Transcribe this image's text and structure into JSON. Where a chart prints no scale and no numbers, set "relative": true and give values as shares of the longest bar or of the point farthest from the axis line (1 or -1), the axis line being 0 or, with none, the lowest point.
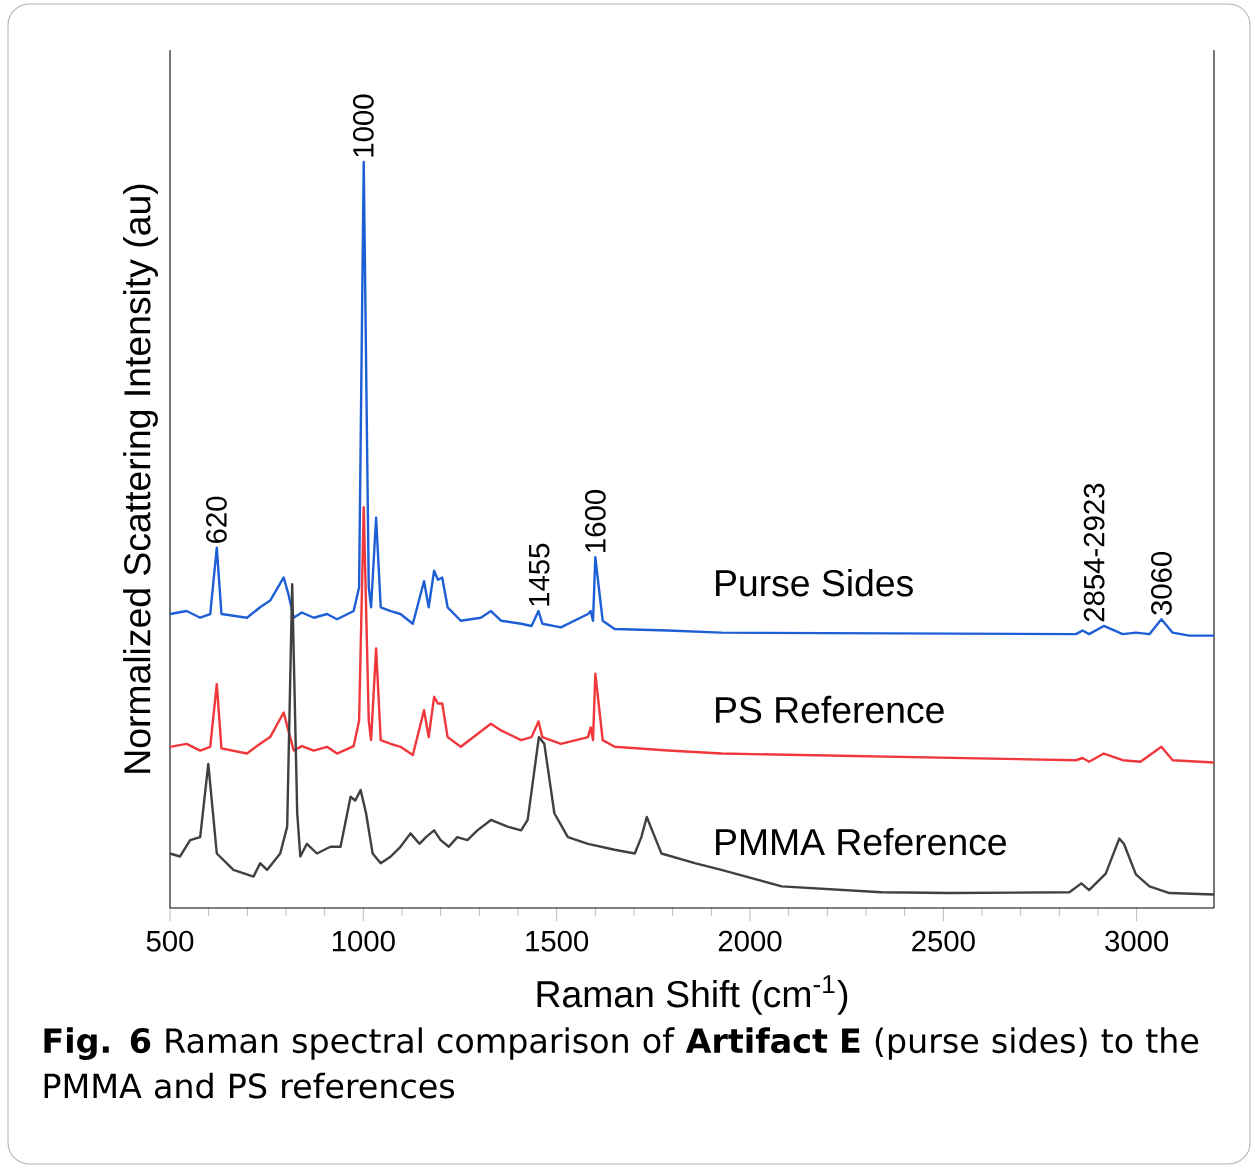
{
  "chart_data": {
    "type": "line",
    "relative": true,
    "xlabel": "Raman Shift (cm$^{-1}$)",
    "ylabel": "Normalized Scattering Intensity (au)",
    "xlim": [
      500,
      3200
    ],
    "xticks": [
      500,
      1000,
      1500,
      2000,
      2500,
      3000
    ],
    "tick_labels": "x",
    "legend": false,
    "grid": false,
    "marker": "none",
    "line_style": "solid",
    "series": [
      {
        "name": "Purse Sides",
        "color": "#1f5fd6",
        "x": [
          500,
          543,
          578,
          604,
          621,
          633,
          699,
          733,
          759,
          794,
          806,
          820,
          841,
          872,
          906,
          932,
          975,
          989,
          1001,
          1014,
          1020,
          1033,
          1045,
          1071,
          1096,
          1128,
          1157,
          1169,
          1183,
          1193,
          1204,
          1218,
          1252,
          1304,
          1330,
          1356,
          1408,
          1435,
          1453,
          1463,
          1511,
          1581,
          1588,
          1594,
          1600,
          1619,
          1650,
          1788,
          1926,
          2843,
          2860,
          2877,
          2915,
          2964,
          2998,
          3033,
          3064,
          3093,
          3136,
          3200
        ],
        "values": [
          0.394,
          0.398,
          0.389,
          0.394,
          0.483,
          0.394,
          0.389,
          0.403,
          0.412,
          0.443,
          0.421,
          0.389,
          0.396,
          0.389,
          0.394,
          0.387,
          0.398,
          0.43,
          1.0,
          0.43,
          0.403,
          0.523,
          0.403,
          0.398,
          0.394,
          0.381,
          0.438,
          0.403,
          0.452,
          0.44,
          0.443,
          0.403,
          0.385,
          0.389,
          0.398,
          0.385,
          0.381,
          0.378,
          0.398,
          0.381,
          0.376,
          0.394,
          0.398,
          0.385,
          0.47,
          0.385,
          0.374,
          0.372,
          0.369,
          0.367,
          0.372,
          0.367,
          0.378,
          0.367,
          0.369,
          0.367,
          0.387,
          0.369,
          0.365,
          0.365
        ]
      },
      {
        "name": "PS Reference",
        "color": "#f0383c",
        "x": [
          500,
          543,
          578,
          604,
          621,
          633,
          699,
          733,
          759,
          794,
          806,
          820,
          841,
          872,
          906,
          932,
          975,
          989,
          1001,
          1014,
          1020,
          1033,
          1045,
          1071,
          1096,
          1128,
          1157,
          1169,
          1183,
          1193,
          1204,
          1218,
          1252,
          1330,
          1356,
          1408,
          1435,
          1453,
          1463,
          1511,
          1581,
          1588,
          1594,
          1600,
          1619,
          1650,
          1788,
          1926,
          2843,
          2860,
          2877,
          2915,
          2964,
          3010,
          3064,
          3093,
          3200
        ],
        "values": [
          0.216,
          0.22,
          0.211,
          0.216,
          0.3,
          0.214,
          0.207,
          0.22,
          0.229,
          0.262,
          0.238,
          0.211,
          0.217,
          0.211,
          0.216,
          0.207,
          0.217,
          0.251,
          0.537,
          0.251,
          0.225,
          0.348,
          0.225,
          0.22,
          0.216,
          0.205,
          0.265,
          0.229,
          0.283,
          0.274,
          0.274,
          0.229,
          0.216,
          0.247,
          0.238,
          0.225,
          0.229,
          0.25,
          0.229,
          0.22,
          0.229,
          0.242,
          0.225,
          0.314,
          0.225,
          0.216,
          0.211,
          0.207,
          0.198,
          0.201,
          0.196,
          0.207,
          0.198,
          0.196,
          0.216,
          0.198,
          0.195
        ]
      },
      {
        "name": "PMMA Reference",
        "color": "#404040",
        "x": [
          500,
          526,
          552,
          578,
          599,
          621,
          664,
          716,
          733,
          751,
          785,
          803,
          816,
          829,
          837,
          854,
          880,
          915,
          941,
          967,
          979,
          993,
          1007,
          1024,
          1045,
          1071,
          1096,
          1122,
          1145,
          1162,
          1183,
          1200,
          1221,
          1243,
          1269,
          1295,
          1330,
          1373,
          1408,
          1425,
          1454,
          1468,
          1494,
          1529,
          1581,
          1650,
          1702,
          1719,
          1733,
          1750,
          1771,
          1857,
          1926,
          2082,
          2340,
          2514,
          2826,
          2857,
          2877,
          2920,
          2955,
          2967,
          2998,
          3033,
          3085,
          3200
        ],
        "values": [
          0.073,
          0.069,
          0.091,
          0.095,
          0.193,
          0.073,
          0.051,
          0.042,
          0.06,
          0.051,
          0.073,
          0.109,
          0.434,
          0.127,
          0.069,
          0.086,
          0.073,
          0.082,
          0.082,
          0.149,
          0.144,
          0.158,
          0.127,
          0.073,
          0.06,
          0.069,
          0.082,
          0.1,
          0.086,
          0.095,
          0.104,
          0.091,
          0.082,
          0.095,
          0.091,
          0.104,
          0.118,
          0.109,
          0.104,
          0.118,
          0.229,
          0.22,
          0.127,
          0.095,
          0.086,
          0.078,
          0.073,
          0.095,
          0.122,
          0.1,
          0.073,
          0.06,
          0.051,
          0.029,
          0.021,
          0.02,
          0.021,
          0.033,
          0.024,
          0.046,
          0.093,
          0.086,
          0.045,
          0.029,
          0.02,
          0.018
        ]
      }
    ],
    "annotations": [
      {
        "text": "620",
        "x": 620,
        "y": 0.483
      },
      {
        "text": "1000",
        "x": 1000,
        "y": 1.0
      },
      {
        "text": "1455",
        "x": 1455,
        "y": 0.398
      },
      {
        "text": "1600",
        "x": 1600,
        "y": 0.47
      },
      {
        "text": "2854-2923",
        "x": 2890,
        "y": 0.378
      },
      {
        "text": "3060",
        "x": 3064,
        "y": 0.387
      },
      "**Fig. 6** Raman spectral comparison of **Artifact E** (purse sides) to the PMMA and PS references"
    ]
  }
}
